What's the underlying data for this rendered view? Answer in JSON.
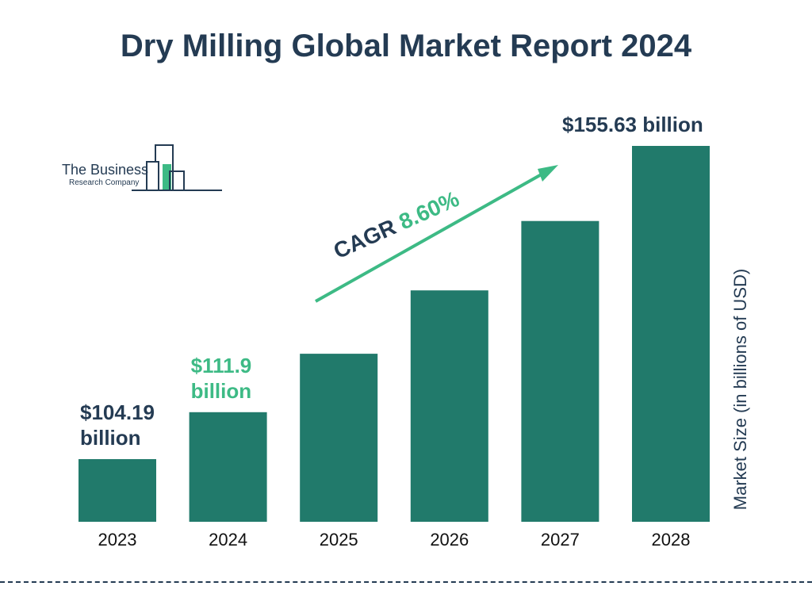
{
  "title": "Dry Milling Global Market Report 2024",
  "logo": {
    "name": "The Business",
    "sub": "Research Company"
  },
  "cagr": {
    "label": "CAGR",
    "value": "8.60%"
  },
  "colors": {
    "bar": "#217a6b",
    "title": "#243b53",
    "accent": "#3dba85",
    "label_dark": "#243b53"
  },
  "chart_data": {
    "type": "bar",
    "categories": [
      "2023",
      "2024",
      "2025",
      "2026",
      "2027",
      "2028"
    ],
    "values": [
      104.19,
      111.9,
      121.5,
      131.9,
      143.3,
      155.63
    ],
    "ylabel": "Market Size (in billions of USD)",
    "xlabel": "",
    "grid": false,
    "data_labels": [
      {
        "category": "2023",
        "lines": [
          "$104.19",
          "billion"
        ],
        "color": "#243b53"
      },
      {
        "category": "2024",
        "lines": [
          "$111.9",
          "billion"
        ],
        "color": "#3dba85"
      },
      {
        "category": "2028",
        "lines": [
          "$155.63 billion"
        ],
        "color": "#243b53"
      }
    ]
  }
}
